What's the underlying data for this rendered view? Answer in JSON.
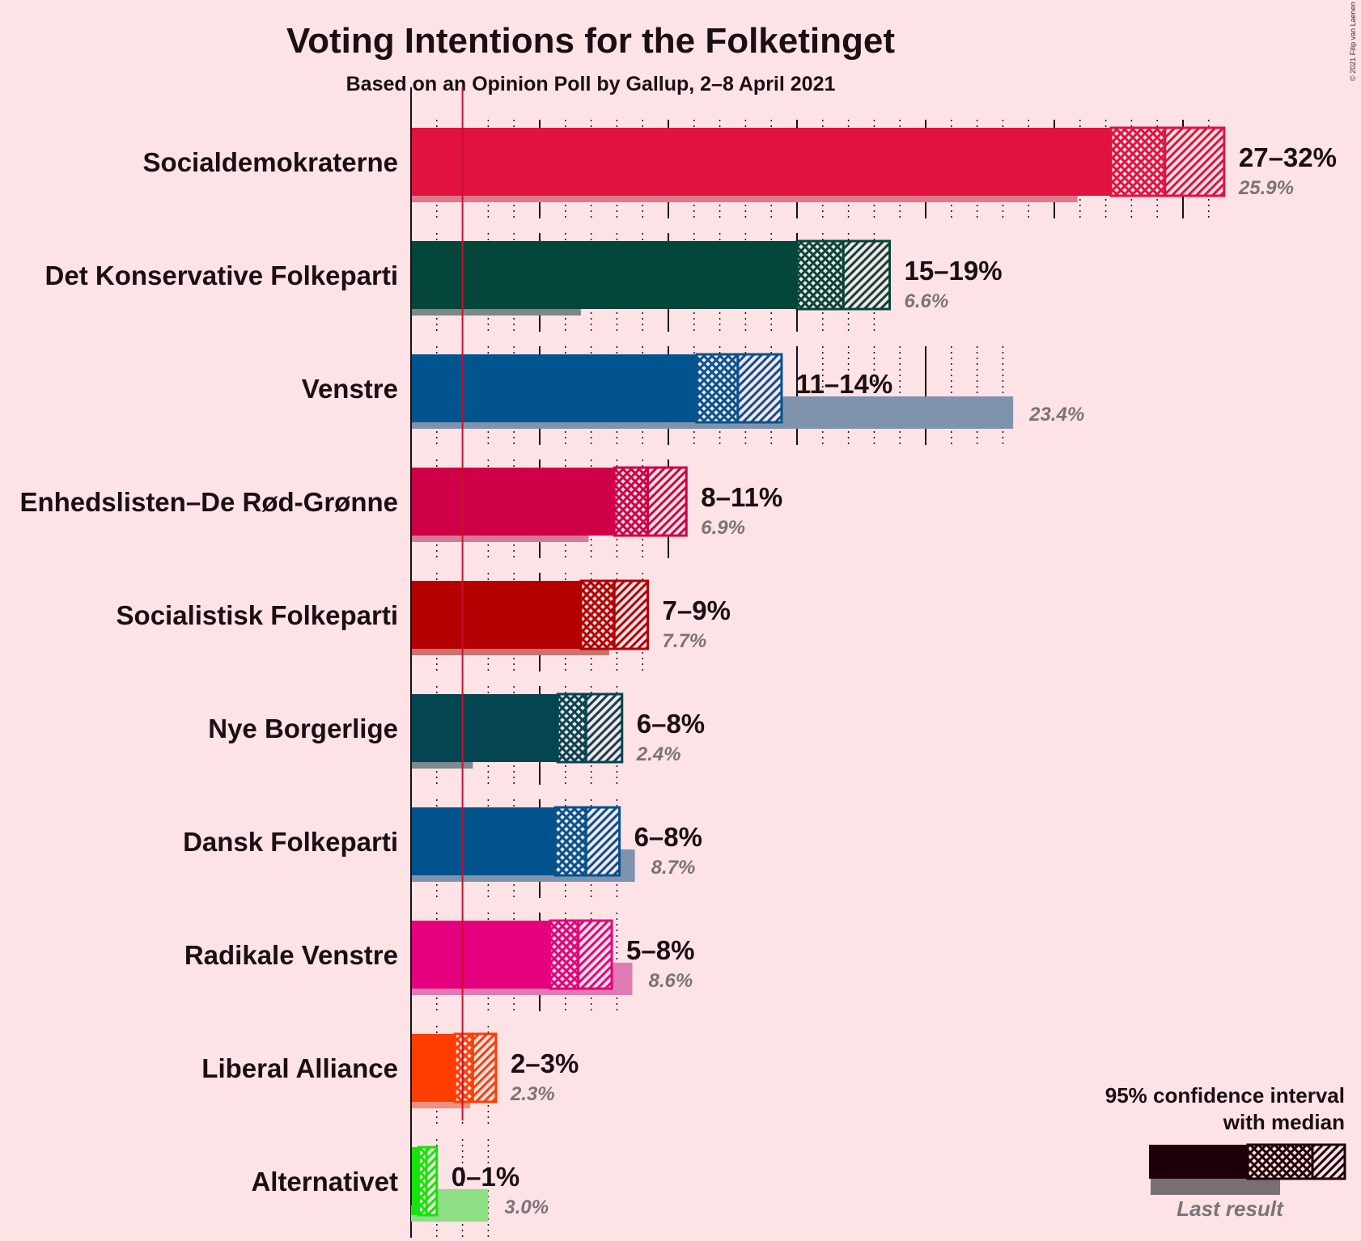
{
  "title": "Voting Intentions for the Folketinget",
  "subtitle": "Based on an Opinion Poll by Gallup, 2–8 April 2021",
  "copyright": "© 2021 Filip van Laenen",
  "legend": {
    "line1": "95% confidence interval",
    "line2": "with median",
    "last_result": "Last result"
  },
  "chart_data": {
    "type": "bar",
    "orientation": "horizontal",
    "xlim": [
      0,
      32
    ],
    "threshold": 2,
    "categories": [
      "Socialdemokraterne",
      "Det Konservative Folkeparti",
      "Venstre",
      "Enhedslisten–De Rød-Grønne",
      "Socialistisk Folkeparti",
      "Nye Borgerlige",
      "Dansk Folkeparti",
      "Radikale Venstre",
      "Liberal Alliance",
      "Alternativet"
    ],
    "series": [
      {
        "name": "95% confidence interval with median",
        "low": [
          27.2,
          15.0,
          11.1,
          7.9,
          6.6,
          5.7,
          5.6,
          5.4,
          1.7,
          0.3
        ],
        "median": [
          29.3,
          16.8,
          12.7,
          9.2,
          7.9,
          6.8,
          6.8,
          6.5,
          2.4,
          0.6
        ],
        "high": [
          31.6,
          18.6,
          14.4,
          10.7,
          9.2,
          8.2,
          8.1,
          7.8,
          3.3,
          1.0
        ],
        "range_labels": [
          "27–32%",
          "15–19%",
          "11–14%",
          "8–11%",
          "7–9%",
          "6–8%",
          "6–8%",
          "5–8%",
          "2–3%",
          "0–1%"
        ]
      },
      {
        "name": "Last result",
        "values": [
          25.9,
          6.6,
          23.4,
          6.9,
          7.7,
          2.4,
          8.7,
          8.6,
          2.3,
          3.0
        ],
        "labels": [
          "25.9%",
          "6.6%",
          "23.4%",
          "6.9%",
          "7.7%",
          "2.4%",
          "8.7%",
          "8.6%",
          "2.3%",
          "3.0%"
        ]
      }
    ],
    "colors": [
      "#E11240",
      "#04463A",
      "#02548F",
      "#CF0047",
      "#B50000",
      "#034550",
      "#02528C",
      "#E5007D",
      "#FF3D00",
      "#13E606"
    ],
    "last_colors": [
      "#DC7A8C",
      "#7C8886",
      "#7F93AC",
      "#D47A95",
      "#C87272",
      "#7B8A8E",
      "#7F93AF",
      "#E07AB3",
      "#EF8F82",
      "#8DDE84"
    ],
    "gridlines": true,
    "legend_position": "bottom-right"
  }
}
